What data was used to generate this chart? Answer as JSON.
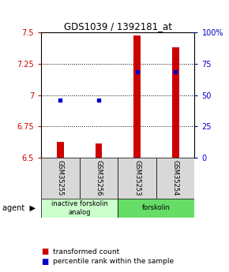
{
  "title": "GDS1039 / 1392181_at",
  "samples": [
    "GSM35255",
    "GSM35256",
    "GSM35253",
    "GSM35254"
  ],
  "bar_values": [
    6.625,
    6.615,
    7.48,
    7.38
  ],
  "bar_bottom": 6.5,
  "blue_dot_values": [
    6.96,
    6.96,
    7.19,
    7.19
  ],
  "ylim": [
    6.5,
    7.5
  ],
  "yticks_left": [
    6.5,
    6.75,
    7.0,
    7.25,
    7.5
  ],
  "yticks_right": [
    0,
    25,
    50,
    75,
    100
  ],
  "ytick_labels_left": [
    "6.5",
    "6.75",
    "7",
    "7.25",
    "7.5"
  ],
  "ytick_labels_right": [
    "0",
    "25",
    "50",
    "75",
    "100%"
  ],
  "grid_lines": [
    6.75,
    7.0,
    7.25
  ],
  "bar_color": "#cc0000",
  "dot_color": "#0000cc",
  "agent_groups": [
    {
      "label": "inactive forskolin\nanalog",
      "samples": [
        0,
        1
      ],
      "color": "#ccffcc"
    },
    {
      "label": "forskolin",
      "samples": [
        2,
        3
      ],
      "color": "#66dd66"
    }
  ],
  "legend_red": "transformed count",
  "legend_blue": "percentile rank within the sample",
  "bar_width": 0.18
}
